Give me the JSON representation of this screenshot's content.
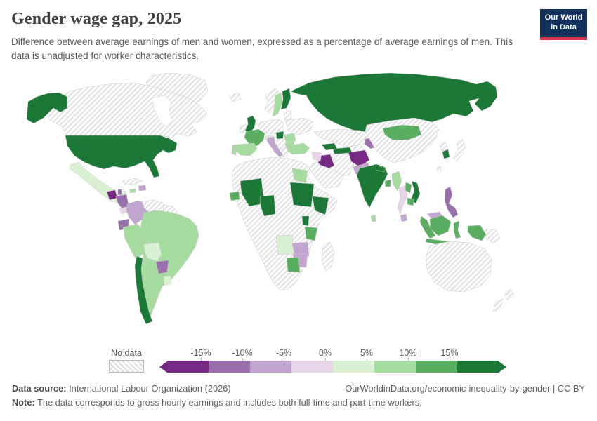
{
  "header": {
    "title": "Gender wage gap, 2025",
    "subtitle": "Difference between average earnings of men and women, expressed as a percentage of average earnings of men. This data is unadjusted for worker characteristics.",
    "logo_line1": "Our World",
    "logo_line2": "in Data"
  },
  "legend": {
    "no_data_label": "No data"
  },
  "footer": {
    "source_label": "Data source:",
    "source_text": " International Labour Organization (2026)",
    "attribution": "OurWorldinData.org/economic-inequality-by-gender | CC BY",
    "note_label": "Note:",
    "note_text": " The data corresponds to gross hourly earnings and includes both full-time and part-time workers."
  },
  "colors": {
    "brand_navy": "#11315c",
    "brand_red": "#d7343f",
    "text_gray": "#5e5e5e"
  },
  "chart_data": {
    "type": "choropleth_map",
    "title": "Gender wage gap, 2025",
    "unit": "%",
    "projection": "world",
    "legend": {
      "no_data_label": "No data",
      "tick_labels": [
        "-15%",
        "-10%",
        "-5%",
        "0%",
        "5%",
        "10%",
        "15%"
      ],
      "bins": [
        {
          "id": "lt-15",
          "label": "< -15%",
          "color": "#762a83"
        },
        {
          "id": "-15--10",
          "label": "-15% to -10%",
          "color": "#9970ab"
        },
        {
          "id": "-10--5",
          "label": "-10% to -5%",
          "color": "#c2a5cf"
        },
        {
          "id": "-5-0",
          "label": "-5% to 0%",
          "color": "#e7d4e8"
        },
        {
          "id": "0-5",
          "label": "0% to 5%",
          "color": "#d9f0d3"
        },
        {
          "id": "5-10",
          "label": "5% to 10%",
          "color": "#a6dba0"
        },
        {
          "id": "10-15",
          "label": "10% to 15%",
          "color": "#5aae61"
        },
        {
          "id": "gt15",
          "label": "> 15%",
          "color": "#1b7837"
        },
        {
          "id": "no-data",
          "label": "No data",
          "color": "hatch"
        }
      ]
    },
    "countries": [
      {
        "name": "United States",
        "bin": "gt15"
      },
      {
        "name": "Chile",
        "bin": "gt15"
      },
      {
        "name": "United Kingdom",
        "bin": "gt15"
      },
      {
        "name": "Finland",
        "bin": "gt15"
      },
      {
        "name": "Hungary",
        "bin": "gt15"
      },
      {
        "name": "Russia",
        "bin": "gt15"
      },
      {
        "name": "Azerbaijan",
        "bin": "gt15"
      },
      {
        "name": "Turkmenistan",
        "bin": "gt15"
      },
      {
        "name": "India",
        "bin": "gt15"
      },
      {
        "name": "Nepal",
        "bin": "gt15"
      },
      {
        "name": "South Korea",
        "bin": "gt15"
      },
      {
        "name": "Vietnam",
        "bin": "gt15"
      },
      {
        "name": "Mali",
        "bin": "gt15"
      },
      {
        "name": "Nigeria",
        "bin": "gt15"
      },
      {
        "name": "Sudan",
        "bin": "gt15"
      },
      {
        "name": "Ethiopia",
        "bin": "gt15"
      },
      {
        "name": "Uganda",
        "bin": "gt15"
      },
      {
        "name": "France",
        "bin": "10-15"
      },
      {
        "name": "Mongolia",
        "bin": "10-15"
      },
      {
        "name": "Senegal",
        "bin": "10-15"
      },
      {
        "name": "Tanzania",
        "bin": "10-15"
      },
      {
        "name": "Botswana",
        "bin": "10-15"
      },
      {
        "name": "Bangladesh",
        "bin": "10-15"
      },
      {
        "name": "Laos",
        "bin": "10-15"
      },
      {
        "name": "Cambodia",
        "bin": "10-15"
      },
      {
        "name": "Indonesia",
        "bin": "10-15"
      },
      {
        "name": "Sweden",
        "bin": "5-10"
      },
      {
        "name": "Spain",
        "bin": "5-10"
      },
      {
        "name": "Portugal",
        "bin": "5-10"
      },
      {
        "name": "Romania",
        "bin": "5-10"
      },
      {
        "name": "Bulgaria",
        "bin": "5-10"
      },
      {
        "name": "Turkey",
        "bin": "5-10"
      },
      {
        "name": "Egypt",
        "bin": "5-10"
      },
      {
        "name": "Brazil",
        "bin": "5-10"
      },
      {
        "name": "Peru",
        "bin": "5-10"
      },
      {
        "name": "Argentina",
        "bin": "5-10"
      },
      {
        "name": "Myanmar",
        "bin": "5-10"
      },
      {
        "name": "Sri Lanka",
        "bin": "5-10"
      },
      {
        "name": "Jamaica",
        "bin": "5-10"
      },
      {
        "name": "Mexico",
        "bin": "0-5"
      },
      {
        "name": "Bolivia",
        "bin": "0-5"
      },
      {
        "name": "Uruguay",
        "bin": "0-5"
      },
      {
        "name": "Angola",
        "bin": "0-5"
      },
      {
        "name": "Switzerland",
        "bin": "0-5"
      },
      {
        "name": "Thailand",
        "bin": "-5-0"
      },
      {
        "name": "Costa Rica",
        "bin": "-5-0"
      },
      {
        "name": "Panama",
        "bin": "-5-0"
      },
      {
        "name": "Syria",
        "bin": "-5-0"
      },
      {
        "name": "Italy",
        "bin": "-10--5"
      },
      {
        "name": "Colombia",
        "bin": "-10--5"
      },
      {
        "name": "Pakistan",
        "bin": "-10--5"
      },
      {
        "name": "Malaysia",
        "bin": "-10--5"
      },
      {
        "name": "Dominican Republic",
        "bin": "-10--5"
      },
      {
        "name": "Zambia",
        "bin": "-10--5"
      },
      {
        "name": "Zimbabwe",
        "bin": "-10--5"
      },
      {
        "name": "Ecuador",
        "bin": "-15--10"
      },
      {
        "name": "Paraguay",
        "bin": "-15--10"
      },
      {
        "name": "Philippines",
        "bin": "-15--10"
      },
      {
        "name": "Tajikistan",
        "bin": "-15--10"
      },
      {
        "name": "Nicaragua",
        "bin": "-15--10"
      },
      {
        "name": "Belize",
        "bin": "-15--10"
      },
      {
        "name": "Afghanistan",
        "bin": "lt-15"
      },
      {
        "name": "Iraq",
        "bin": "lt-15"
      },
      {
        "name": "Guatemala",
        "bin": "lt-15"
      },
      {
        "name": "Canada",
        "bin": "no-data"
      },
      {
        "name": "Greenland",
        "bin": "no-data"
      },
      {
        "name": "Cuba",
        "bin": "no-data"
      },
      {
        "name": "Venezuela",
        "bin": "no-data"
      },
      {
        "name": "Guyana",
        "bin": "no-data"
      },
      {
        "name": "Iceland",
        "bin": "no-data"
      },
      {
        "name": "Ireland",
        "bin": "no-data"
      },
      {
        "name": "Norway",
        "bin": "no-data"
      },
      {
        "name": "Denmark",
        "bin": "no-data"
      },
      {
        "name": "Lithuania",
        "bin": "no-data"
      },
      {
        "name": "Germany",
        "bin": "no-data"
      },
      {
        "name": "Ukraine",
        "bin": "no-data"
      },
      {
        "name": "Austria",
        "bin": "no-data"
      },
      {
        "name": "Serbia",
        "bin": "no-data"
      },
      {
        "name": "Greece",
        "bin": "no-data"
      },
      {
        "name": "Kazakhstan",
        "bin": "no-data"
      },
      {
        "name": "Uzbekistan",
        "bin": "no-data"
      },
      {
        "name": "Iran",
        "bin": "no-data"
      },
      {
        "name": "Saudi Arabia",
        "bin": "no-data"
      },
      {
        "name": "China",
        "bin": "no-data"
      },
      {
        "name": "North Korea",
        "bin": "no-data"
      },
      {
        "name": "Japan",
        "bin": "no-data"
      },
      {
        "name": "Taiwan",
        "bin": "no-data"
      },
      {
        "name": "Papua New Guinea",
        "bin": "no-data"
      },
      {
        "name": "Australia",
        "bin": "no-data"
      },
      {
        "name": "New Zealand",
        "bin": "no-data"
      },
      {
        "name": "Madagascar",
        "bin": "no-data"
      }
    ]
  }
}
